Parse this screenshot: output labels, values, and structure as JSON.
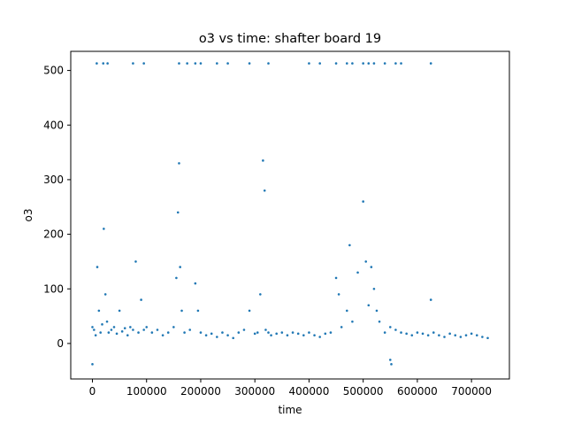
{
  "chart_data": {
    "type": "scatter",
    "title": "o3 vs time: shafter board 19",
    "xlabel": "time",
    "ylabel": "o3",
    "xlim": [
      -40000,
      770000
    ],
    "ylim": [
      -65,
      535
    ],
    "xticks": [
      0,
      100000,
      200000,
      300000,
      400000,
      500000,
      600000,
      700000
    ],
    "xtick_labels": [
      "0",
      "100000",
      "200000",
      "300000",
      "400000",
      "500000",
      "600000",
      "700000"
    ],
    "yticks": [
      0,
      100,
      200,
      300,
      400,
      500
    ],
    "ytick_labels": [
      "0",
      "100",
      "200",
      "300",
      "400",
      "500"
    ],
    "grid": false,
    "marker_color": "#1f77b4",
    "series": [
      {
        "x": [
          0,
          3000,
          6000,
          9000,
          12000,
          15000,
          18000,
          21000,
          24000,
          27000,
          30000,
          35000,
          40000,
          45000,
          50000,
          55000,
          60000,
          65000,
          70000,
          75000,
          80000,
          85000,
          90000,
          95000,
          100000,
          110000,
          120000,
          130000,
          140000,
          150000,
          155000,
          158000,
          160000,
          162000,
          165000,
          170000,
          180000,
          190000,
          195000,
          200000,
          210000,
          220000,
          230000,
          240000,
          250000,
          260000,
          270000,
          280000,
          290000,
          300000,
          305000,
          310000,
          315000,
          318000,
          320000,
          325000,
          330000,
          340000,
          350000,
          360000,
          370000,
          380000,
          390000,
          400000,
          410000,
          420000,
          430000,
          440000,
          450000,
          455000,
          460000,
          470000,
          475000,
          480000,
          490000,
          500000,
          505000,
          510000,
          515000,
          520000,
          525000,
          530000,
          540000,
          550000,
          560000,
          570000,
          580000,
          590000,
          600000,
          610000,
          620000,
          625000,
          630000,
          640000,
          650000,
          660000,
          670000,
          680000,
          690000,
          700000,
          710000,
          720000,
          730000
        ],
        "y": [
          30,
          25,
          15,
          140,
          60,
          20,
          35,
          210,
          90,
          40,
          20,
          25,
          30,
          18,
          60,
          22,
          28,
          15,
          30,
          25,
          150,
          20,
          80,
          25,
          30,
          20,
          25,
          15,
          20,
          30,
          120,
          240,
          330,
          140,
          60,
          20,
          25,
          110,
          60,
          20,
          15,
          18,
          12,
          20,
          15,
          10,
          20,
          25,
          60,
          18,
          20,
          90,
          335,
          280,
          25,
          20,
          15,
          18,
          20,
          15,
          20,
          18,
          15,
          20,
          15,
          12,
          18,
          20,
          120,
          90,
          30,
          60,
          180,
          40,
          130,
          260,
          150,
          70,
          140,
          100,
          60,
          40,
          20,
          30,
          25,
          20,
          18,
          15,
          20,
          18,
          15,
          80,
          20,
          15,
          12,
          18,
          15,
          12,
          15,
          18,
          15,
          12,
          10
        ]
      },
      {
        "x": [
          8000,
          20000,
          28000,
          75000,
          95000,
          160000,
          175000,
          190000,
          200000,
          230000,
          250000,
          290000,
          325000,
          400000,
          420000,
          450000,
          470000,
          480000,
          500000,
          510000,
          520000,
          540000,
          560000,
          570000,
          625000
        ],
        "y": [
          513,
          513,
          513,
          513,
          513,
          513,
          513,
          513,
          513,
          513,
          513,
          513,
          513,
          513,
          513,
          513,
          513,
          513,
          513,
          513,
          513,
          513,
          513,
          513,
          513
        ]
      },
      {
        "x": [
          0,
          550000,
          552000
        ],
        "y": [
          -38,
          -30,
          -38
        ]
      }
    ]
  }
}
